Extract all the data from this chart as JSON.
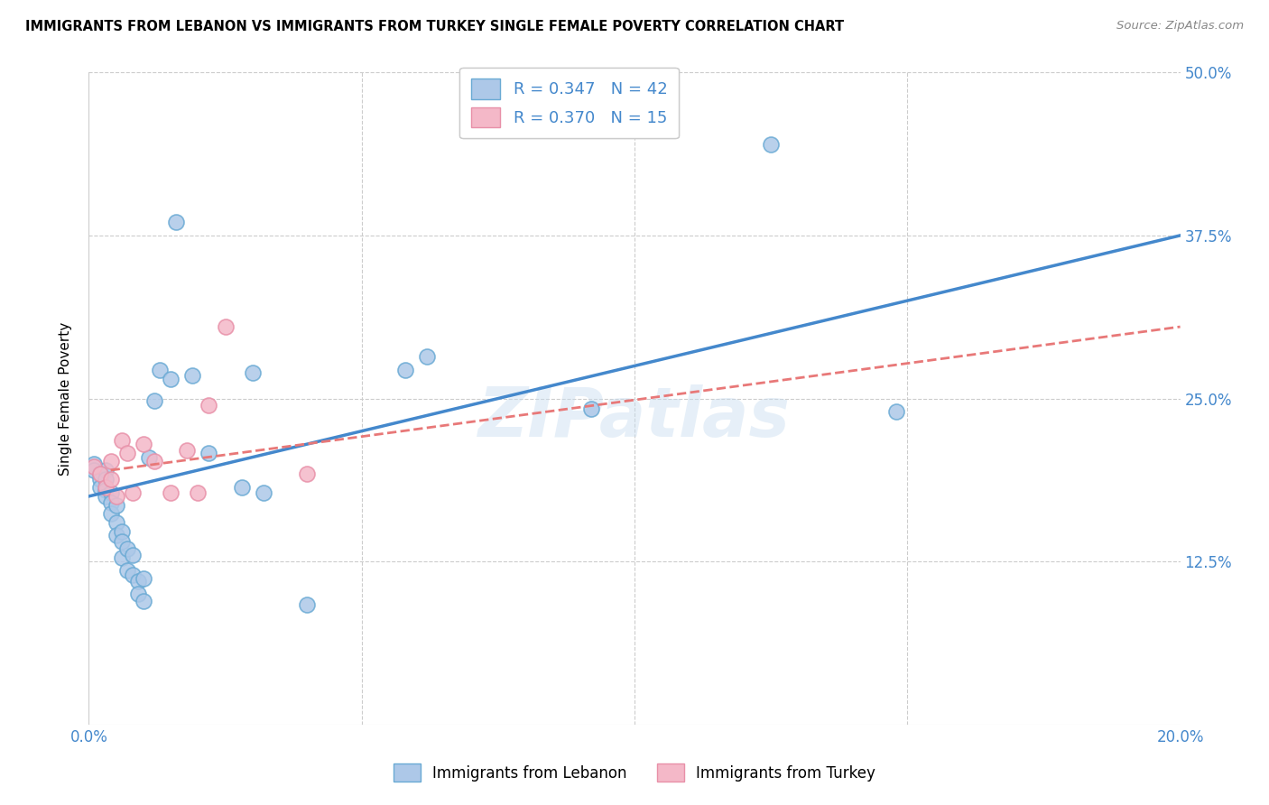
{
  "title": "IMMIGRANTS FROM LEBANON VS IMMIGRANTS FROM TURKEY SINGLE FEMALE POVERTY CORRELATION CHART",
  "source": "Source: ZipAtlas.com",
  "ylabel": "Single Female Poverty",
  "xlim": [
    0.0,
    0.2
  ],
  "ylim": [
    0.0,
    0.5
  ],
  "ytick_values": [
    0.125,
    0.25,
    0.375,
    0.5
  ],
  "xtick_values": [
    0.0,
    0.2
  ],
  "grid_xticks": [
    0.05,
    0.1,
    0.15
  ],
  "grid_color": "#cccccc",
  "background_color": "#ffffff",
  "watermark": "ZIPatlas",
  "lebanon_color": "#adc8e8",
  "turkey_color": "#f4b8c8",
  "lebanon_edge_color": "#6aaad4",
  "turkey_edge_color": "#e890a8",
  "lebanon_line_color": "#4488cc",
  "turkey_line_color": "#e87878",
  "tick_color": "#4488cc",
  "legend_label1": "Immigrants from Lebanon",
  "legend_label2": "Immigrants from Turkey",
  "lebanon_x": [
    0.001,
    0.001,
    0.002,
    0.002,
    0.002,
    0.003,
    0.003,
    0.003,
    0.003,
    0.004,
    0.004,
    0.004,
    0.005,
    0.005,
    0.005,
    0.006,
    0.006,
    0.006,
    0.007,
    0.007,
    0.008,
    0.008,
    0.009,
    0.009,
    0.01,
    0.01,
    0.011,
    0.012,
    0.013,
    0.015,
    0.016,
    0.019,
    0.022,
    0.028,
    0.03,
    0.032,
    0.04,
    0.058,
    0.062,
    0.092,
    0.125,
    0.148
  ],
  "lebanon_y": [
    0.2,
    0.195,
    0.192,
    0.188,
    0.182,
    0.195,
    0.188,
    0.18,
    0.175,
    0.178,
    0.17,
    0.162,
    0.168,
    0.155,
    0.145,
    0.148,
    0.14,
    0.128,
    0.135,
    0.118,
    0.13,
    0.115,
    0.11,
    0.1,
    0.112,
    0.095,
    0.205,
    0.248,
    0.272,
    0.265,
    0.385,
    0.268,
    0.208,
    0.182,
    0.27,
    0.178,
    0.092,
    0.272,
    0.282,
    0.242,
    0.445,
    0.24
  ],
  "turkey_x": [
    0.001,
    0.002,
    0.003,
    0.004,
    0.004,
    0.005,
    0.006,
    0.007,
    0.008,
    0.01,
    0.012,
    0.015,
    0.018,
    0.02,
    0.022,
    0.025,
    0.04
  ],
  "turkey_y": [
    0.198,
    0.192,
    0.182,
    0.202,
    0.188,
    0.175,
    0.218,
    0.208,
    0.178,
    0.215,
    0.202,
    0.178,
    0.21,
    0.178,
    0.245,
    0.305,
    0.192
  ],
  "leb_line_x": [
    0.0,
    0.2
  ],
  "leb_line_y": [
    0.175,
    0.375
  ],
  "tur_line_x": [
    0.004,
    0.2
  ],
  "tur_line_y": [
    0.195,
    0.305
  ]
}
